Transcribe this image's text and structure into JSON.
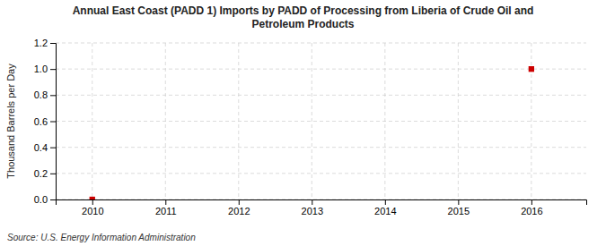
{
  "chart_data": {
    "type": "scatter",
    "title": "Annual East Coast (PADD 1) Imports by PADD of Processing from Liberia of Crude Oil and\nPetroleum Products",
    "y_label": "Thousand Barrels per Day",
    "annotations": [
      "Source: U.S. Energy Information Administration"
    ],
    "x": [
      2016,
      2010
    ],
    "values": [
      1.0,
      0.0
    ],
    "color": "#cc0000",
    "marker": "square",
    "xlim": [
      2009.5,
      2016.75
    ],
    "ylim": [
      0.0,
      1.2
    ],
    "xticks": [
      2010,
      2011,
      2012,
      2013,
      2014,
      2015,
      2016
    ],
    "yticks": [
      {
        "value": 0.0,
        "label": "0.0"
      },
      0.2,
      0.4,
      0.6,
      0.8,
      {
        "value": 1.0,
        "label": "1.0"
      },
      1.2
    ],
    "grid": true
  }
}
